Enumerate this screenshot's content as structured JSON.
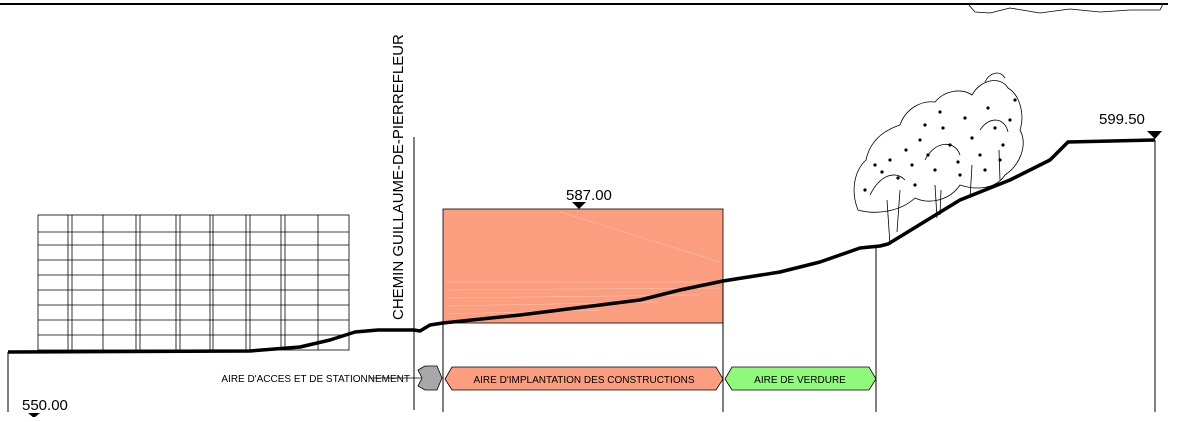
{
  "elevations": {
    "left": "550.00",
    "center": "587.00",
    "right": "599.50"
  },
  "road": {
    "name": "CHEMIN GUILLAUME-DE-PIERREFLEUR"
  },
  "zones": {
    "access": "AIRE D'ACCES ET DE STATIONNEMENT",
    "construction": "AIRE D'IMPLANTATION DES CONSTRUCTIONS",
    "green": "AIRE DE VERDURE"
  },
  "colors": {
    "construction_fill": "#FA9E7F",
    "green_fill": "#8EF97A",
    "access_fill": "#A8A8A8",
    "line": "#000000"
  }
}
